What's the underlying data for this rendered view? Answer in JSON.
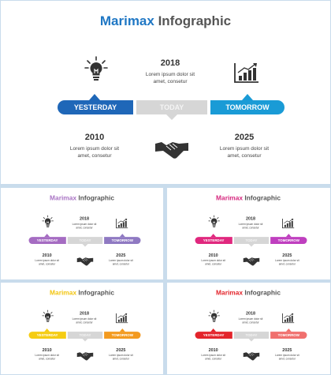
{
  "title": {
    "brand": "Marimax",
    "rest": " Infographic"
  },
  "timeline": {
    "left_label": "YESTERDAY",
    "mid_label": "TODAY",
    "right_label": "TOMORROW"
  },
  "entries": {
    "top": {
      "year": "2018",
      "line1": "Lorem ipsum dolor sit",
      "line2": "amet, consetur"
    },
    "bottom_left": {
      "year": "2010",
      "line1": "Lorem ipsum dolor sit",
      "line2": "amet, consetur"
    },
    "bottom_right": {
      "year": "2025",
      "line1": "Lorem ipsum dolor sit",
      "line2": "amet, consetur"
    }
  },
  "icons": {
    "top_left": "lightbulb-icon",
    "top_right": "growth-chart-icon",
    "bottom_center": "handshake-icon"
  },
  "variants": [
    {
      "name": "blue",
      "brand_color": "#1f77c4",
      "left_color": "#1f67b8",
      "right_color": "#1a9bd6"
    },
    {
      "name": "purple",
      "brand_color": "#a974c4",
      "left_color": "#a56cc2",
      "right_color": "#8f79c2"
    },
    {
      "name": "magenta",
      "brand_color": "#d6287f",
      "left_color": "#e0287e",
      "right_color": "#bf3fbf"
    },
    {
      "name": "yellow",
      "brand_color": "#f2c510",
      "left_color": "#f5cc12",
      "right_color": "#f39a1f"
    },
    {
      "name": "red",
      "brand_color": "#e3242b",
      "left_color": "#e3242b",
      "right_color": "#f0706e"
    }
  ]
}
